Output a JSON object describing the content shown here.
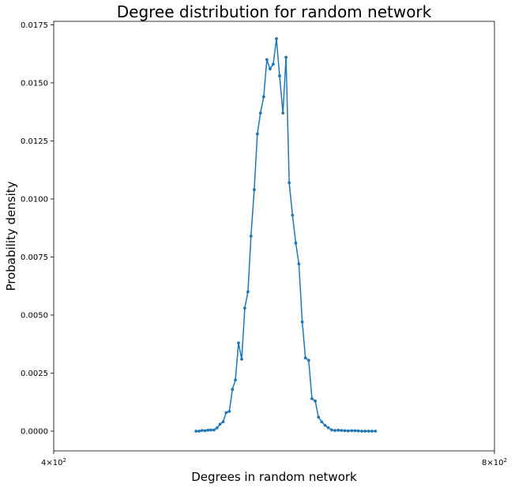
{
  "chart_data": {
    "type": "line",
    "title": "Degree distribution for random network",
    "xlabel": "Degrees in random network",
    "ylabel": "Probability density",
    "xscale": "log",
    "xlim": [
      400,
      800
    ],
    "ylim": [
      -0.00085,
      0.01765
    ],
    "xticks": [
      {
        "value": 400,
        "base": "4×10",
        "exp": "2"
      },
      {
        "value": 800,
        "base": "8×10",
        "exp": "2"
      }
    ],
    "yticks": [
      {
        "value": 0.0,
        "label": "0.0000"
      },
      {
        "value": 0.0025,
        "label": "0.0025"
      },
      {
        "value": 0.005,
        "label": "0.0050"
      },
      {
        "value": 0.0075,
        "label": "0.0075"
      },
      {
        "value": 0.01,
        "label": "0.0100"
      },
      {
        "value": 0.0125,
        "label": "0.0125"
      },
      {
        "value": 0.015,
        "label": "0.0150"
      },
      {
        "value": 0.0175,
        "label": "0.0175"
      }
    ],
    "grid": false,
    "legend": "none",
    "series": [
      {
        "color": "#1f77b4",
        "marker": "circle",
        "x": [
          500.3,
          502.7,
          505.0,
          507.4,
          509.8,
          512.2,
          514.7,
          517.1,
          519.6,
          522.1,
          524.6,
          527.2,
          529.8,
          532.3,
          534.9,
          537.6,
          540.2,
          542.9,
          545.5,
          548.3,
          551.0,
          553.7,
          556.5,
          559.3,
          562.1,
          564.9,
          567.8,
          570.6,
          573.6,
          576.4,
          579.3,
          582.3,
          585.3,
          588.2,
          591.3,
          594.3,
          597.3,
          600.4,
          603.5,
          606.6,
          609.7,
          612.9,
          616.0,
          619.3,
          622.5,
          625.8,
          629.0,
          632.3,
          635.7,
          639.1,
          642.5,
          645.8,
          649.3,
          652.8,
          656.3,
          659.8,
          663.4
        ],
        "y": [
          0.0,
          0.0,
          3e-05,
          2e-05,
          4e-05,
          5e-05,
          5e-05,
          0.00014,
          0.0003,
          0.0004,
          0.0008,
          0.00085,
          0.0018,
          0.0022,
          0.0038,
          0.0031,
          0.0053,
          0.006,
          0.0084,
          0.0104,
          0.0128,
          0.0137,
          0.0144,
          0.016,
          0.0156,
          0.0158,
          0.0169,
          0.0153,
          0.0137,
          0.0161,
          0.0107,
          0.0093,
          0.0081,
          0.0072,
          0.0047,
          0.00315,
          0.00305,
          0.0014,
          0.0013,
          0.0006,
          0.0004,
          0.00025,
          0.00015,
          5e-05,
          3e-05,
          4e-05,
          3e-05,
          2e-05,
          1e-05,
          2e-05,
          2e-05,
          1e-05,
          0.0,
          0.0,
          0.0,
          0.0,
          0.0
        ]
      }
    ]
  }
}
